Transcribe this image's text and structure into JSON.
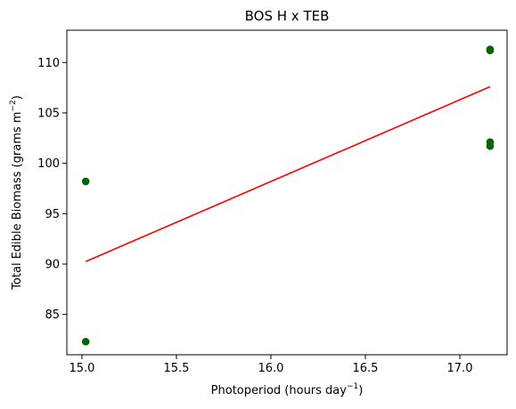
{
  "chart_data": {
    "type": "scatter",
    "title": "BOS H x TEB",
    "xlabel": {
      "text": "Photoperiod (hours day",
      "sup": "−1",
      "suffix": ")"
    },
    "ylabel": {
      "text": "Total Edible Biomass (grams m",
      "sup": "−2",
      "suffix": ")"
    },
    "xlim": [
      14.92,
      17.25
    ],
    "ylim": [
      81.0,
      113.2
    ],
    "xticks": [
      15.0,
      15.5,
      16.0,
      16.5,
      17.0
    ],
    "xtick_labels": [
      "15.0",
      "15.5",
      "16.0",
      "16.5",
      "17.0"
    ],
    "yticks": [
      85,
      90,
      95,
      100,
      105,
      110
    ],
    "ytick_labels": [
      "85",
      "90",
      "95",
      "100",
      "105",
      "110"
    ],
    "grid": false,
    "series": [
      {
        "kind": "scatter",
        "color": "#006400",
        "points": [
          {
            "x": 15.02,
            "y": 98.2
          },
          {
            "x": 15.02,
            "y": 82.3
          },
          {
            "x": 17.16,
            "y": 111.3
          },
          {
            "x": 17.16,
            "y": 111.2
          },
          {
            "x": 17.16,
            "y": 102.1
          },
          {
            "x": 17.16,
            "y": 101.7
          }
        ]
      },
      {
        "kind": "line",
        "color": "#ff0000",
        "points": [
          {
            "x": 15.02,
            "y": 90.25
          },
          {
            "x": 17.16,
            "y": 107.6
          }
        ]
      }
    ]
  }
}
